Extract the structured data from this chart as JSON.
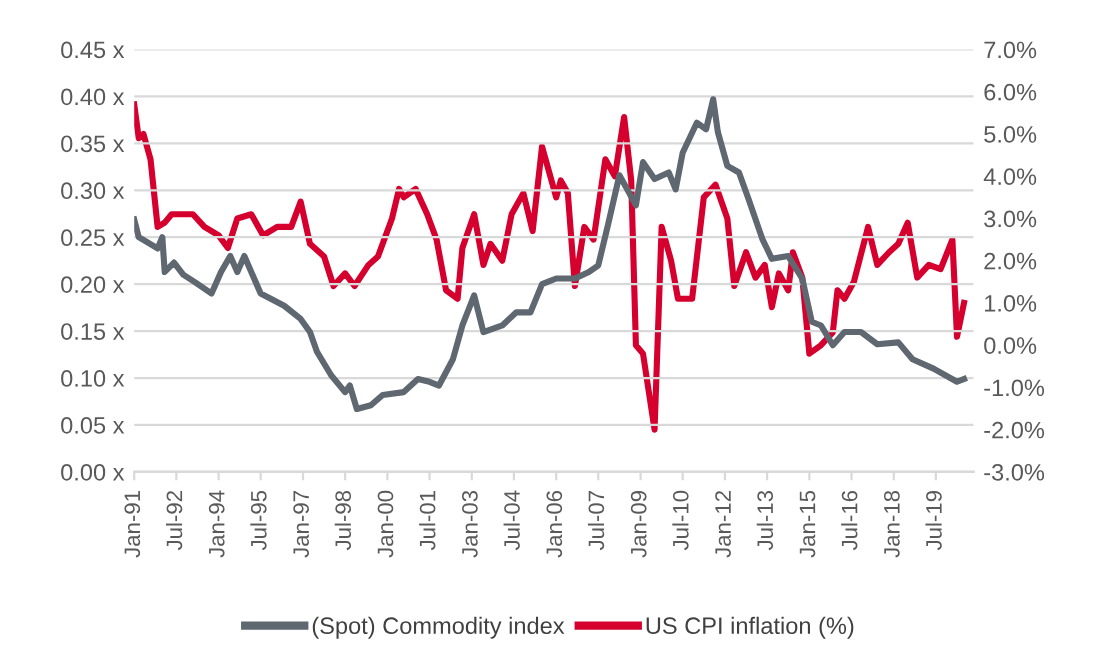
{
  "chart_data": {
    "type": "line",
    "xlim": [
      "1991-01-01",
      "2020-11-01"
    ],
    "xticks": [
      {
        "value": "1991-01-01",
        "label": "Jan-91"
      },
      {
        "value": "1992-07-01",
        "label": "Jul-92"
      },
      {
        "value": "1994-01-01",
        "label": "Jan-94"
      },
      {
        "value": "1995-07-01",
        "label": "Jul-95"
      },
      {
        "value": "1997-01-01",
        "label": "Jan-97"
      },
      {
        "value": "1998-07-01",
        "label": "Jul-98"
      },
      {
        "value": "2000-01-01",
        "label": "Jan-00"
      },
      {
        "value": "2001-07-01",
        "label": "Jul-01"
      },
      {
        "value": "2003-01-01",
        "label": "Jan-03"
      },
      {
        "value": "2004-07-01",
        "label": "Jul-04"
      },
      {
        "value": "2006-01-01",
        "label": "Jan-06"
      },
      {
        "value": "2007-07-01",
        "label": "Jul-07"
      },
      {
        "value": "2009-01-01",
        "label": "Jan-09"
      },
      {
        "value": "2010-07-01",
        "label": "Jul-10"
      },
      {
        "value": "2012-01-01",
        "label": "Jan-12"
      },
      {
        "value": "2013-07-01",
        "label": "Jul-13"
      },
      {
        "value": "2015-01-01",
        "label": "Jan-15"
      },
      {
        "value": "2016-07-01",
        "label": "Jul-16"
      },
      {
        "value": "2018-01-01",
        "label": "Jan-18"
      },
      {
        "value": "2019-07-01",
        "label": "Jul-19"
      }
    ],
    "ylim": [
      0,
      0.45
    ],
    "yticks": [
      {
        "value": 0,
        "label": "0.00 x"
      },
      {
        "value": 0.05,
        "label": "0.05 x"
      },
      {
        "value": 0.1,
        "label": "0.10 x"
      },
      {
        "value": 0.15,
        "label": "0.15 x"
      },
      {
        "value": 0.2,
        "label": "0.20 x"
      },
      {
        "value": 0.25,
        "label": "0.25 x"
      },
      {
        "value": 0.3,
        "label": "0.30 x"
      },
      {
        "value": 0.35,
        "label": "0.35 x"
      },
      {
        "value": 0.4,
        "label": "0.40 x"
      },
      {
        "value": 0.45,
        "label": "0.45 x"
      }
    ],
    "y2lim": [
      -3,
      7
    ],
    "y2ticks": [
      {
        "value": -3,
        "label": "-3.0%"
      },
      {
        "value": -2,
        "label": "-2.0%"
      },
      {
        "value": -1,
        "label": "-1.0%"
      },
      {
        "value": 0,
        "label": "0.0%"
      },
      {
        "value": 1,
        "label": "1.0%"
      },
      {
        "value": 2,
        "label": "2.0%"
      },
      {
        "value": 3,
        "label": "3.0%"
      },
      {
        "value": 4,
        "label": "4.0%"
      },
      {
        "value": 5,
        "label": "5.0%"
      },
      {
        "value": 6,
        "label": "6.0%"
      },
      {
        "value": 7,
        "label": "7.0%"
      }
    ],
    "grid": "y",
    "legend": "bottom",
    "marker": "none",
    "line_style": "solid",
    "series": [
      {
        "name": "(Spot) Commodity index",
        "color": "#5f6770",
        "x": [
          "1991-01",
          "1991-03",
          "1991-11",
          "1992-01",
          "1992-02",
          "1992-06",
          "1992-10",
          "1993-03",
          "1993-10",
          "1994-02",
          "1994-06",
          "1994-09",
          "1994-12",
          "1995-07",
          "1996-05",
          "1996-12",
          "1997-04",
          "1997-07",
          "1998-01",
          "1998-07",
          "1998-09",
          "1998-12",
          "1999-06",
          "1999-11",
          "2000-08",
          "2001-02",
          "2001-07",
          "2001-11",
          "2002-05",
          "2002-09",
          "2003-02",
          "2003-06",
          "2004-02",
          "2004-08",
          "2005-02",
          "2005-07",
          "2006-01",
          "2006-09",
          "2007-03",
          "2007-07",
          "2007-11",
          "2008-04",
          "2008-08",
          "2008-11",
          "2009-02",
          "2009-07",
          "2010-01",
          "2010-04",
          "2010-07",
          "2011-01",
          "2011-05",
          "2011-08",
          "2011-10",
          "2012-02",
          "2012-07",
          "2012-11",
          "2013-05",
          "2013-09",
          "2014-04",
          "2014-10",
          "2015-02",
          "2015-06",
          "2015-11",
          "2016-04",
          "2016-11",
          "2017-06",
          "2018-03",
          "2018-09",
          "2019-06",
          "2020-04",
          "2020-07"
        ],
        "values": [
          0.269,
          0.25,
          0.238,
          0.25,
          0.213,
          0.223,
          0.21,
          0.202,
          0.19,
          0.213,
          0.23,
          0.213,
          0.23,
          0.19,
          0.177,
          0.163,
          0.149,
          0.128,
          0.103,
          0.085,
          0.092,
          0.067,
          0.071,
          0.082,
          0.085,
          0.099,
          0.096,
          0.092,
          0.12,
          0.156,
          0.188,
          0.149,
          0.156,
          0.17,
          0.17,
          0.2,
          0.206,
          0.206,
          0.213,
          0.22,
          0.262,
          0.316,
          0.298,
          0.284,
          0.33,
          0.312,
          0.319,
          0.301,
          0.34,
          0.372,
          0.365,
          0.397,
          0.362,
          0.326,
          0.319,
          0.291,
          0.248,
          0.227,
          0.23,
          0.206,
          0.16,
          0.156,
          0.135,
          0.149,
          0.149,
          0.136,
          0.138,
          0.12,
          0.11,
          0.096,
          0.099
        ]
      },
      {
        "name": "US CPI inflation (%)",
        "color": "#d6002f",
        "axis": "y2",
        "x": [
          "1991-01",
          "1991-03",
          "1991-05",
          "1991-08",
          "1991-11",
          "1992-02",
          "1992-05",
          "1993-02",
          "1993-07",
          "1994-01",
          "1994-05",
          "1994-09",
          "1995-03",
          "1995-08",
          "1996-02",
          "1996-08",
          "1996-12",
          "1997-04",
          "1997-10",
          "1998-02",
          "1998-07",
          "1998-11",
          "1999-05",
          "1999-09",
          "2000-03",
          "2000-06",
          "2000-08",
          "2001-01",
          "2001-06",
          "2001-10",
          "2002-02",
          "2002-07",
          "2002-09",
          "2003-02",
          "2003-06",
          "2003-09",
          "2004-02",
          "2004-06",
          "2004-11",
          "2005-03",
          "2005-07",
          "2006-01",
          "2006-03",
          "2006-06",
          "2006-09",
          "2007-01",
          "2007-05",
          "2007-10",
          "2008-02",
          "2008-06",
          "2008-09",
          "2008-11",
          "2009-02",
          "2009-07",
          "2009-10",
          "2010-02",
          "2010-05",
          "2010-11",
          "2011-04",
          "2011-09",
          "2012-02",
          "2012-05",
          "2012-10",
          "2013-02",
          "2013-06",
          "2013-09",
          "2013-12",
          "2014-04",
          "2014-06",
          "2014-10",
          "2015-01",
          "2015-06",
          "2015-11",
          "2016-01",
          "2016-04",
          "2016-08",
          "2017-02",
          "2017-06",
          "2017-11",
          "2018-03",
          "2018-07",
          "2018-11",
          "2019-04",
          "2019-09",
          "2020-02",
          "2020-04",
          "2020-07"
        ],
        "values": [
          5.7,
          4.9,
          5.0,
          4.4,
          2.8,
          2.9,
          3.1,
          3.1,
          2.8,
          2.6,
          2.3,
          3.0,
          3.1,
          2.6,
          2.8,
          2.8,
          3.4,
          2.4,
          2.1,
          1.4,
          1.7,
          1.4,
          1.9,
          2.1,
          3.0,
          3.7,
          3.5,
          3.7,
          3.1,
          2.5,
          1.3,
          1.1,
          2.3,
          3.1,
          1.9,
          2.4,
          2.0,
          3.1,
          3.6,
          2.7,
          4.7,
          3.5,
          3.9,
          3.6,
          1.4,
          2.8,
          2.5,
          4.4,
          4.0,
          5.4,
          3.9,
          0.0,
          -0.2,
          -2.0,
          2.8,
          2.0,
          1.1,
          1.1,
          3.5,
          3.8,
          3.0,
          1.4,
          2.2,
          1.6,
          1.9,
          0.9,
          1.7,
          1.3,
          2.2,
          1.6,
          -0.2,
          0.0,
          0.3,
          1.3,
          1.1,
          1.5,
          2.8,
          1.9,
          2.2,
          2.4,
          2.9,
          1.6,
          1.9,
          1.8,
          2.5,
          0.2,
          1.0
        ]
      }
    ]
  }
}
